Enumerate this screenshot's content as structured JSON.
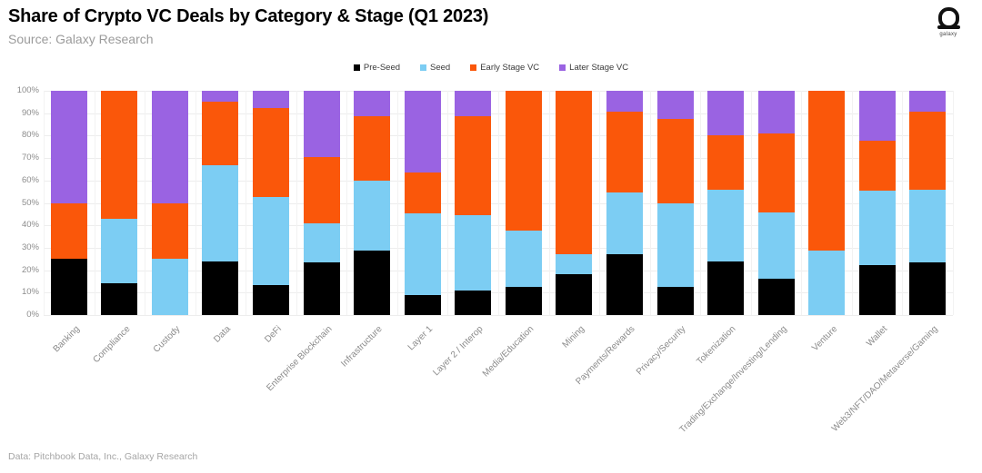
{
  "header": {
    "title": "Share of Crypto VC Deals by Category & Stage (Q1 2023)",
    "subtitle": "Source: Galaxy Research",
    "logo_text": "galaxy"
  },
  "footer": {
    "source_note": "Data: Pitchbook Data, Inc., Galaxy Research"
  },
  "colors": {
    "pre_seed": "#000000",
    "seed": "#7CCDF3",
    "early_stage": "#FA570A",
    "later_stage": "#9A63E2",
    "grid": "#EDEDED",
    "axis_text": "#8C8C8C"
  },
  "chart_data": {
    "type": "bar",
    "stacked": true,
    "unit": "%",
    "title": "Share of Crypto VC Deals by Category & Stage (Q1 2023)",
    "xlabel": "",
    "ylabel": "",
    "ylim": [
      0,
      100
    ],
    "y_ticks": [
      0,
      10,
      20,
      30,
      40,
      50,
      60,
      70,
      80,
      90,
      100
    ],
    "grid": true,
    "legend_position": "top-center",
    "categories": [
      "Banking",
      "Compliance",
      "Custody",
      "Data",
      "DeFi",
      "Enterprise Blockchain",
      "Infrastructure",
      "Layer 1",
      "Layer 2 / Interop",
      "Media/Education",
      "Mining",
      "Payments/Rewards",
      "Privacy/Security",
      "Tokenization",
      "Trading/Exchange/Investing/Lending",
      "Venture",
      "Wallet",
      "Web3/NFT/DAO/Metaverse/Gaming"
    ],
    "series": [
      {
        "name": "Pre-Seed",
        "color_key": "pre_seed",
        "values": [
          25,
          14.3,
          0,
          23.8,
          13.2,
          23.5,
          28.6,
          9.1,
          11.1,
          12.5,
          18.2,
          27.3,
          12.5,
          24,
          16.2,
          0,
          22.2,
          23.3
        ]
      },
      {
        "name": "Seed",
        "color_key": "seed",
        "values": [
          0,
          28.6,
          25,
          42.9,
          39.5,
          17.6,
          31.4,
          36.4,
          33.3,
          25,
          9.1,
          27.3,
          37.5,
          32,
          29.7,
          28.6,
          33.3,
          32.5
        ]
      },
      {
        "name": "Early Stage VC",
        "color_key": "early_stage",
        "values": [
          25,
          57.1,
          25,
          28.6,
          39.5,
          29.4,
          28.6,
          18.2,
          44.4,
          62.5,
          72.7,
          36.3,
          37.5,
          24,
          35.1,
          71.4,
          22.2,
          34.9
        ]
      },
      {
        "name": "Later Stage VC",
        "color_key": "later_stage",
        "values": [
          50,
          0,
          50,
          4.7,
          7.8,
          29.5,
          11.4,
          36.3,
          11.2,
          0,
          0,
          9.1,
          12.5,
          20,
          19,
          0,
          22.3,
          9.3
        ]
      }
    ]
  }
}
